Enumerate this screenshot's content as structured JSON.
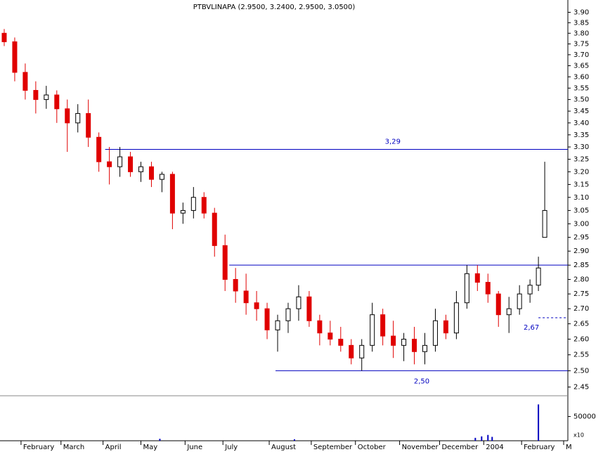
{
  "chart_data": [
    {
      "type": "candlestick",
      "title": "PTBVLINAPA (2.9500, 3.2400, 2.9500, 3.0500)",
      "log_scale": true,
      "up_color": "#000000",
      "down_color": "#e00000",
      "level_color": "#0000c0",
      "xlim": [
        0,
        270
      ],
      "xticks": [
        {
          "value": 10,
          "label": "February"
        },
        {
          "value": 29,
          "label": "March"
        },
        {
          "value": 49,
          "label": "April"
        },
        {
          "value": 67,
          "label": "May"
        },
        {
          "value": 88,
          "label": "June"
        },
        {
          "value": 106,
          "label": "July"
        },
        {
          "value": 128,
          "label": "August"
        },
        {
          "value": 148,
          "label": "September"
        },
        {
          "value": 169,
          "label": "October"
        },
        {
          "value": 190,
          "label": "November"
        },
        {
          "value": 209,
          "label": "December"
        },
        {
          "value": 230,
          "label": "2004"
        },
        {
          "value": 248,
          "label": "February"
        },
        {
          "value": 268,
          "label": "M"
        }
      ],
      "ylim": [
        2.43,
        3.96
      ],
      "yticks": [
        {
          "value": 2.45,
          "label": "2.45"
        },
        {
          "value": 2.5,
          "label": "2.50"
        },
        {
          "value": 2.55,
          "label": "2.55"
        },
        {
          "value": 2.6,
          "label": "2.60"
        },
        {
          "value": 2.65,
          "label": "2.65"
        },
        {
          "value": 2.7,
          "label": "2.70"
        },
        {
          "value": 2.75,
          "label": "2.75"
        },
        {
          "value": 2.8,
          "label": "2.80"
        },
        {
          "value": 2.85,
          "label": "2.85"
        },
        {
          "value": 2.9,
          "label": "2.90"
        },
        {
          "value": 2.95,
          "label": "2.95"
        },
        {
          "value": 3.0,
          "label": "3.00"
        },
        {
          "value": 3.05,
          "label": "3.05"
        },
        {
          "value": 3.1,
          "label": "3.10"
        },
        {
          "value": 3.15,
          "label": "3.15"
        },
        {
          "value": 3.2,
          "label": "3.20"
        },
        {
          "value": 3.25,
          "label": "3.25"
        },
        {
          "value": 3.3,
          "label": "3.30"
        },
        {
          "value": 3.35,
          "label": "3.35"
        },
        {
          "value": 3.4,
          "label": "3.40"
        },
        {
          "value": 3.45,
          "label": "3.45"
        },
        {
          "value": 3.5,
          "label": "3.50"
        },
        {
          "value": 3.55,
          "label": "3.55"
        },
        {
          "value": 3.6,
          "label": "3.60"
        },
        {
          "value": 3.65,
          "label": "3.65"
        },
        {
          "value": 3.7,
          "label": "3.70"
        },
        {
          "value": 3.75,
          "label": "3.75"
        },
        {
          "value": 3.8,
          "label": "3.80"
        },
        {
          "value": 3.85,
          "label": "3.85"
        },
        {
          "value": 3.9,
          "label": "3.90"
        }
      ],
      "x": [
        2,
        7,
        12,
        17,
        22,
        27,
        32,
        37,
        42,
        47,
        52,
        57,
        62,
        67,
        72,
        77,
        82,
        87,
        92,
        97,
        102,
        107,
        112,
        117,
        122,
        127,
        132,
        137,
        142,
        147,
        152,
        157,
        162,
        167,
        172,
        177,
        182,
        187,
        192,
        197,
        202,
        207,
        212,
        217,
        222,
        227,
        232,
        237,
        242,
        247,
        252,
        256,
        259
      ],
      "open": [
        3.8,
        3.76,
        3.62,
        3.54,
        3.5,
        3.52,
        3.46,
        3.4,
        3.44,
        3.34,
        3.24,
        3.22,
        3.26,
        3.2,
        3.22,
        3.17,
        3.19,
        3.04,
        3.05,
        3.1,
        3.04,
        2.92,
        2.8,
        2.76,
        2.72,
        2.7,
        2.63,
        2.66,
        2.7,
        2.74,
        2.66,
        2.62,
        2.6,
        2.58,
        2.54,
        2.58,
        2.68,
        2.61,
        2.58,
        2.6,
        2.56,
        2.58,
        2.66,
        2.62,
        2.72,
        2.82,
        2.79,
        2.75,
        2.68,
        2.7,
        2.75,
        2.78,
        2.95
      ],
      "high": [
        3.82,
        3.78,
        3.66,
        3.58,
        3.56,
        3.54,
        3.5,
        3.48,
        3.5,
        3.36,
        3.3,
        3.3,
        3.28,
        3.24,
        3.24,
        3.2,
        3.2,
        3.08,
        3.14,
        3.12,
        3.06,
        2.96,
        2.84,
        2.82,
        2.76,
        2.72,
        2.68,
        2.72,
        2.78,
        2.76,
        2.68,
        2.66,
        2.64,
        2.6,
        2.6,
        2.72,
        2.7,
        2.66,
        2.62,
        2.64,
        2.62,
        2.7,
        2.68,
        2.76,
        2.85,
        2.85,
        2.82,
        2.76,
        2.74,
        2.78,
        2.8,
        2.88,
        3.24
      ],
      "low": [
        3.74,
        3.58,
        3.5,
        3.44,
        3.46,
        3.4,
        3.28,
        3.36,
        3.3,
        3.2,
        3.15,
        3.18,
        3.18,
        3.16,
        3.14,
        3.12,
        2.98,
        3.0,
        3.02,
        3.02,
        2.88,
        2.76,
        2.72,
        2.68,
        2.66,
        2.6,
        2.56,
        2.62,
        2.66,
        2.64,
        2.58,
        2.58,
        2.56,
        2.52,
        2.5,
        2.56,
        2.58,
        2.54,
        2.53,
        2.52,
        2.52,
        2.56,
        2.6,
        2.6,
        2.7,
        2.76,
        2.72,
        2.64,
        2.62,
        2.68,
        2.72,
        2.76,
        2.95
      ],
      "close": [
        3.76,
        3.62,
        3.54,
        3.5,
        3.52,
        3.46,
        3.4,
        3.44,
        3.34,
        3.24,
        3.22,
        3.26,
        3.2,
        3.22,
        3.17,
        3.19,
        3.04,
        3.05,
        3.1,
        3.04,
        2.92,
        2.8,
        2.76,
        2.72,
        2.7,
        2.63,
        2.66,
        2.7,
        2.74,
        2.66,
        2.62,
        2.6,
        2.58,
        2.54,
        2.58,
        2.68,
        2.61,
        2.58,
        2.6,
        2.56,
        2.58,
        2.66,
        2.62,
        2.72,
        2.82,
        2.79,
        2.75,
        2.68,
        2.7,
        2.75,
        2.78,
        2.84,
        3.05
      ],
      "levels": [
        {
          "value": 3.29,
          "label": "3,29",
          "x_start": 50,
          "dashed": false
        },
        {
          "value": 2.85,
          "x_start": 109,
          "dashed": false
        },
        {
          "value": 2.5,
          "label": "2,50",
          "x_start": 131,
          "dashed": false
        },
        {
          "value": 2.67,
          "label": "2,67",
          "x_start": 256,
          "dashed": true
        }
      ]
    },
    {
      "type": "bar",
      "color": "#0000c0",
      "ylim": [
        0,
        90000
      ],
      "yticks": [
        50000
      ],
      "scale_label": "x10",
      "x": [
        76,
        140,
        226,
        229,
        232,
        234,
        256
      ],
      "values": [
        4000,
        3000,
        6000,
        9000,
        12000,
        8000,
        75000
      ]
    }
  ]
}
